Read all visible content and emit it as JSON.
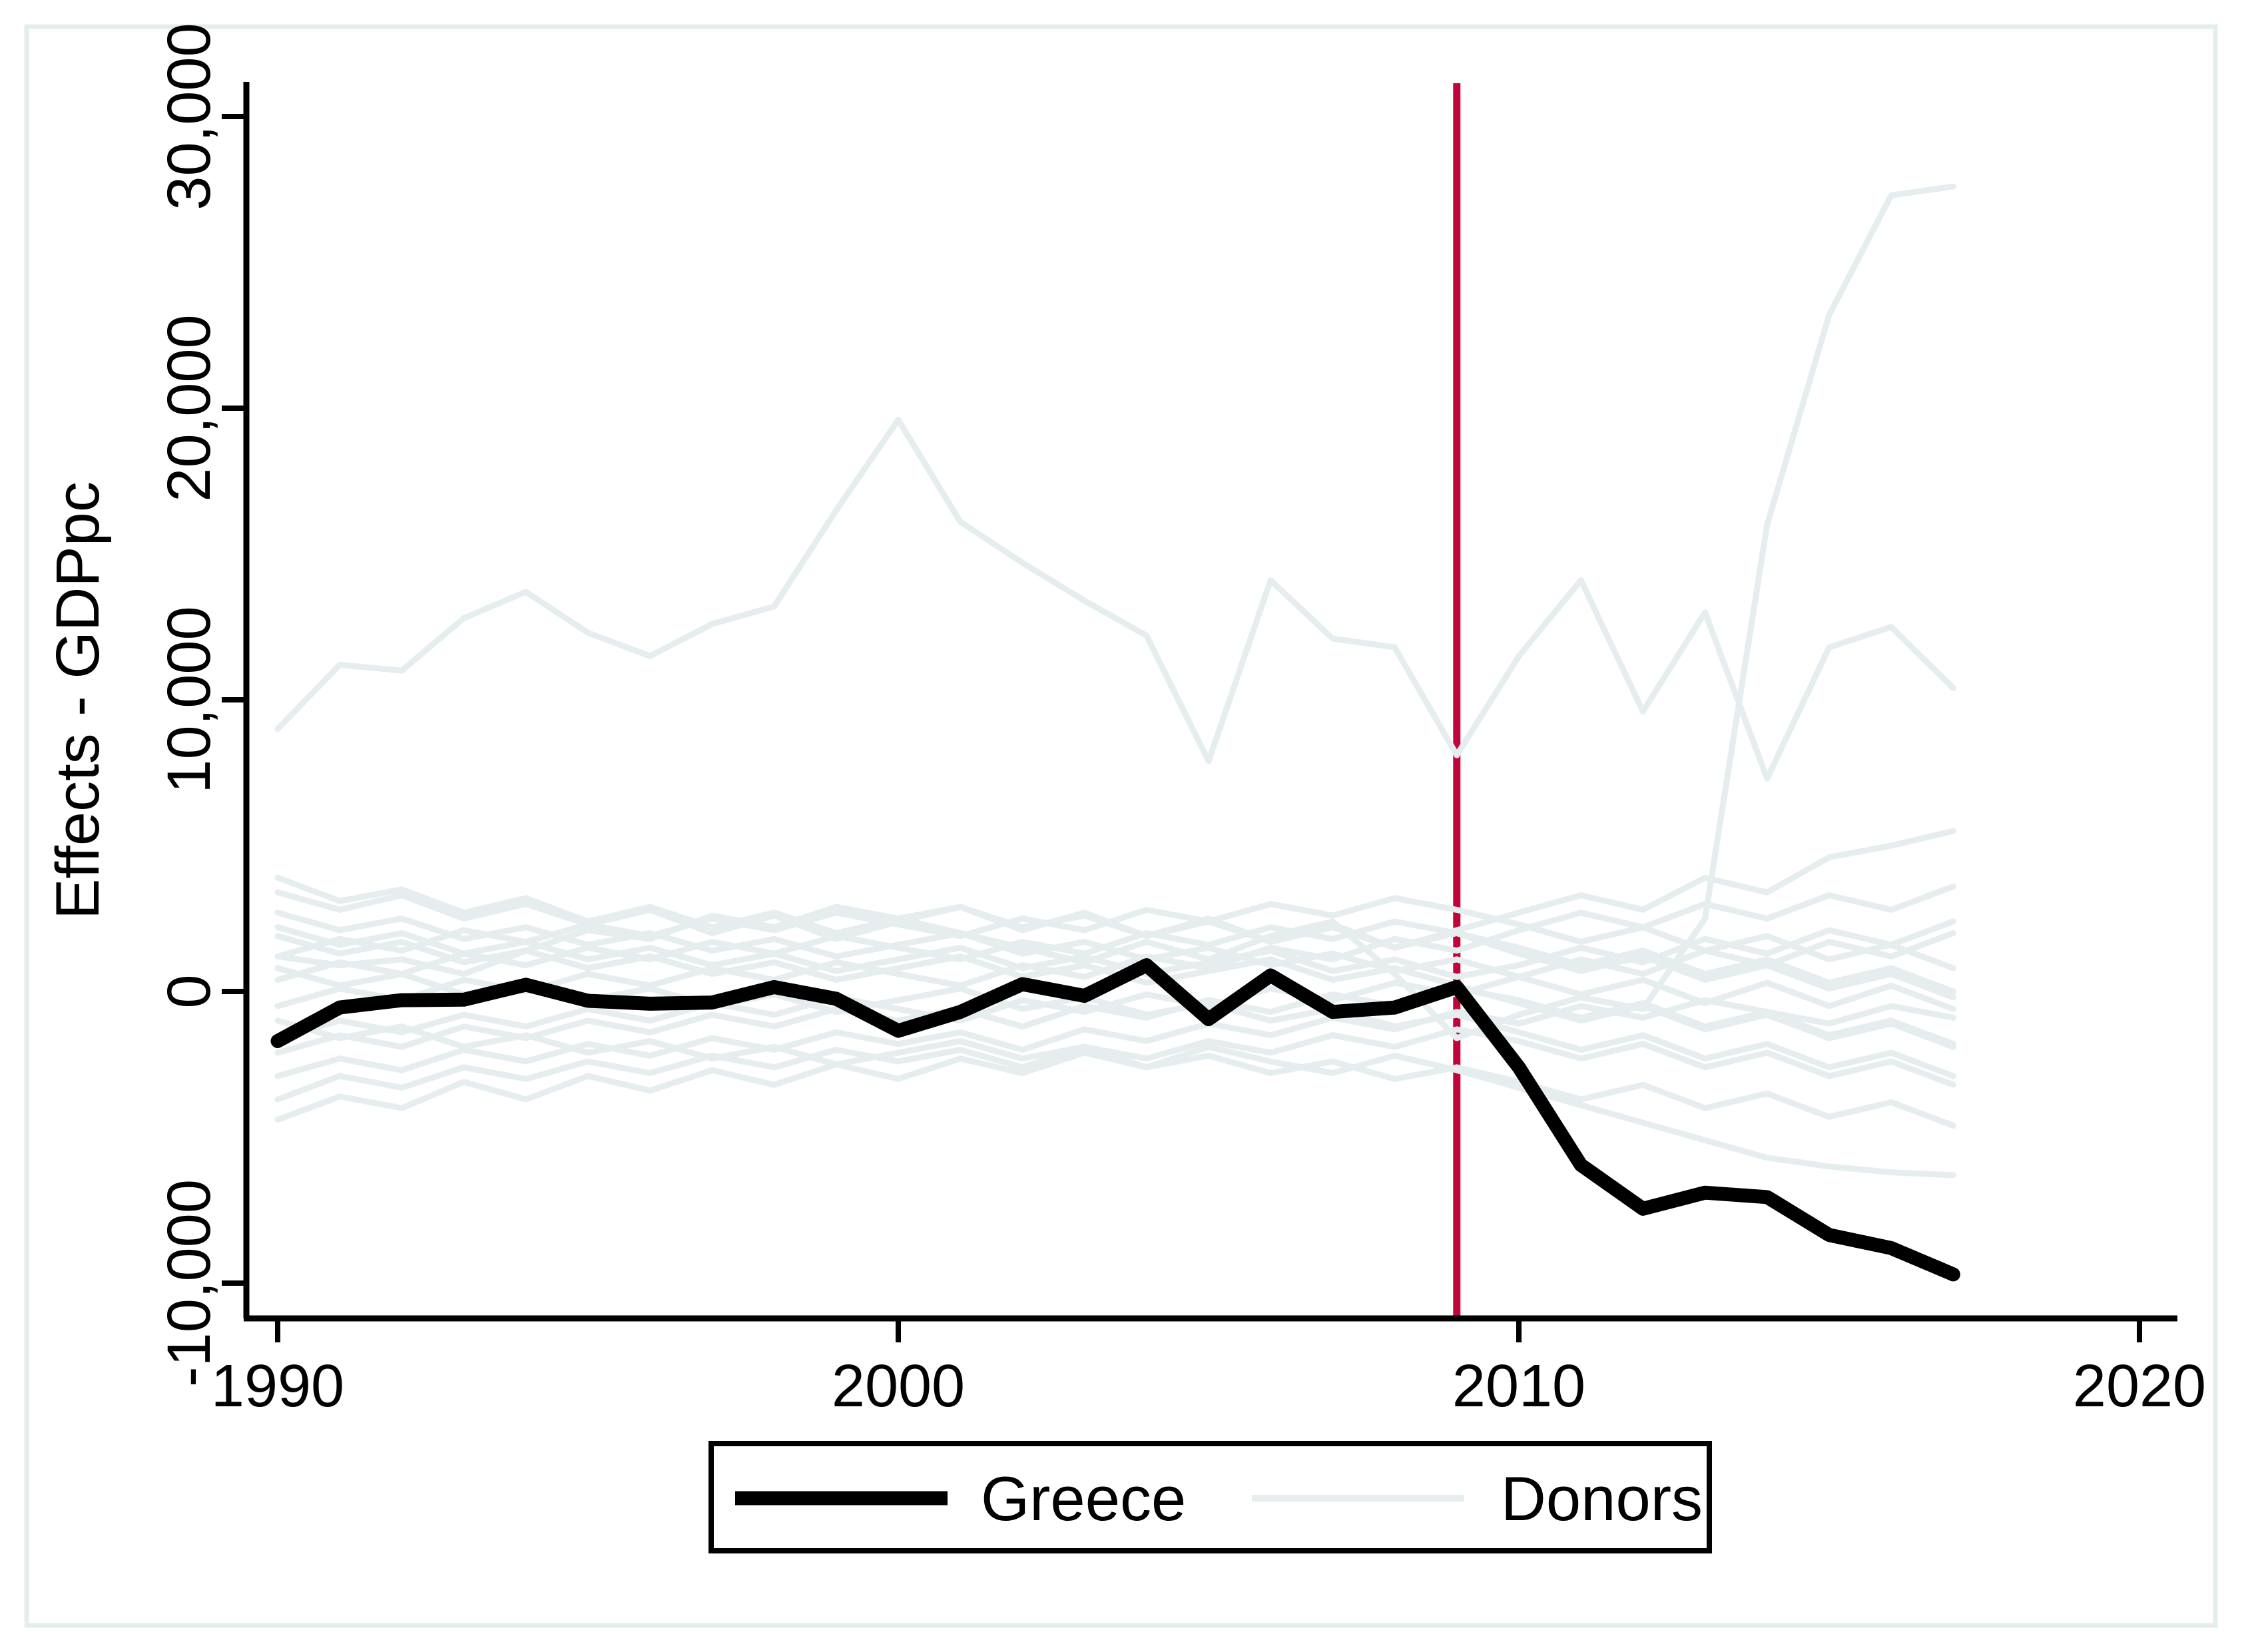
{
  "chart_data": {
    "type": "line",
    "title": "",
    "xlabel": "",
    "ylabel": "Effects - GDPpc",
    "x_start_year": 1990,
    "x_end_year": 2017,
    "xlim": [
      1990,
      2020
    ],
    "ylim": [
      -10000,
      30000
    ],
    "grid": "off",
    "legend_position": "bottom-center",
    "x_ticks": [
      1990,
      2000,
      2010,
      2020
    ],
    "x_tick_labels": [
      "1990",
      "2000",
      "2010",
      "2020"
    ],
    "y_ticks": [
      -10000,
      0,
      10000,
      20000,
      30000
    ],
    "y_tick_labels": [
      "-10,000",
      "0",
      "10,000",
      "20,000",
      "30,000"
    ],
    "vline": {
      "x": 2009,
      "color": "#c10538"
    },
    "series": [
      {
        "name": "Greece",
        "color": "#000000",
        "width": 21,
        "values": [
          -1700,
          -550,
          -300,
          -280,
          230,
          -320,
          -420,
          -380,
          150,
          -250,
          -1350,
          -700,
          250,
          -150,
          900,
          -950,
          550,
          -700,
          -550,
          150,
          -2600,
          -5950,
          -7450,
          -6900,
          -7050,
          -8350,
          -8800,
          -9700
        ]
      },
      {
        "name": "Donors",
        "color": "#e6edee",
        "width": 9,
        "values_list": [
          [
            9000,
            11200,
            11000,
            12800,
            13700,
            12300,
            11500,
            12600,
            13200,
            16500,
            19600,
            16100,
            14700,
            13400,
            12200,
            7900,
            14100,
            12100,
            11800,
            8100,
            11500,
            14100,
            9600,
            13000,
            7300,
            11800,
            12500,
            10400
          ],
          [
            1200,
            900,
            1100,
            600,
            1400,
            2100,
            1800,
            2600,
            2200,
            2900,
            2500,
            2000,
            1500,
            1000,
            1700,
            1100,
            1900,
            2400,
            600,
            -1600,
            -800,
            -200,
            -600,
            2500,
            16000,
            23200,
            27300,
            27600
          ],
          [
            3400,
            2800,
            3300,
            2500,
            3000,
            2300,
            2800,
            2000,
            2600,
            1800,
            2400,
            2900,
            2100,
            2700,
            1900,
            2500,
            1700,
            2300,
            1500,
            2100,
            2700,
            3300,
            2800,
            3900,
            3400,
            4600,
            5000,
            5500
          ],
          [
            -4400,
            -3600,
            -4000,
            -3100,
            -3700,
            -2900,
            -3400,
            -2700,
            -3200,
            -2500,
            -3000,
            -2300,
            -2800,
            -2100,
            -2600,
            -1900,
            -2400,
            -2800,
            -2200,
            -2700,
            -3300,
            -3900,
            -4500,
            -5100,
            -5700,
            -6000,
            -6200,
            -6300
          ],
          [
            1900,
            1300,
            1700,
            1000,
            1400,
            800,
            1200,
            600,
            1000,
            400,
            800,
            1200,
            500,
            900,
            300,
            700,
            1100,
            400,
            800,
            200,
            -400,
            -1000,
            -500,
            -1300,
            -800,
            -1600,
            -1100,
            -1900
          ],
          [
            -1600,
            -1000,
            -1400,
            -800,
            -1200,
            -600,
            -1000,
            -400,
            -800,
            -200,
            -600,
            -1000,
            -300,
            -700,
            -100,
            -500,
            100,
            -300,
            300,
            -100,
            500,
            1100,
            600,
            1400,
            900,
            1700,
            1200,
            2000
          ],
          [
            2700,
            2100,
            2500,
            1800,
            2200,
            1600,
            2000,
            1400,
            1800,
            1200,
            1600,
            2000,
            1300,
            1700,
            1100,
            1500,
            900,
            1300,
            700,
            1100,
            500,
            -100,
            400,
            -400,
            300,
            -500,
            200,
            -600
          ],
          [
            -2900,
            -2300,
            -2700,
            -2000,
            -2400,
            -1800,
            -2200,
            -1600,
            -2000,
            -1400,
            -1800,
            -1400,
            -2000,
            -1300,
            -1700,
            -1100,
            -1500,
            -900,
            -1300,
            -700,
            -1100,
            -500,
            -900,
            -300,
            -700,
            -1100,
            -500,
            -900
          ],
          [
            800,
            200,
            600,
            -100,
            300,
            -300,
            100,
            -500,
            -100,
            -700,
            -300,
            100,
            -600,
            -200,
            -800,
            -400,
            -1000,
            -600,
            -1200,
            -800,
            -1400,
            -2000,
            -1500,
            -2300,
            -1800,
            -2600,
            -2100,
            -2900
          ],
          [
            -500,
            100,
            -300,
            400,
            0,
            600,
            200,
            800,
            400,
            1000,
            600,
            200,
            900,
            500,
            1200,
            800,
            1500,
            1100,
            1800,
            1400,
            2100,
            2700,
            2200,
            3000,
            2500,
            3300,
            2800,
            3600
          ],
          [
            3900,
            3100,
            3500,
            2700,
            3200,
            2400,
            2900,
            2200,
            2700,
            2000,
            2500,
            2900,
            2200,
            2600,
            1900,
            2400,
            1700,
            2200,
            1500,
            2000,
            1300,
            700,
            1200,
            400,
            900,
            100,
            600,
            -200
          ],
          [
            -3700,
            -2900,
            -3300,
            -2600,
            -3000,
            -2400,
            -2800,
            -2200,
            -2600,
            -2000,
            -2400,
            -2000,
            -2600,
            -1900,
            -2300,
            -1700,
            -2100,
            -1500,
            -1900,
            -1300,
            -1700,
            -2300,
            -1800,
            -2600,
            -2100,
            -2900,
            -2400,
            -3200
          ],
          [
            1200,
            1800,
            1400,
            2100,
            1700,
            2300,
            1900,
            2500,
            2100,
            2700,
            2300,
            1900,
            2500,
            2100,
            2800,
            2400,
            3000,
            2600,
            3200,
            2800,
            2300,
            1700,
            2200,
            1400,
            1900,
            1100,
            1600,
            800
          ],
          [
            -2100,
            -1500,
            -1900,
            -1200,
            -1600,
            -1000,
            -1400,
            -800,
            -1200,
            -600,
            -1000,
            -600,
            -1200,
            -500,
            -900,
            -300,
            -700,
            -100,
            -500,
            100,
            -300,
            -900,
            -400,
            -1200,
            -700,
            -1500,
            -1000,
            -1800
          ],
          [
            400,
            1000,
            600,
            1300,
            900,
            1500,
            1100,
            1700,
            1300,
            1900,
            1500,
            1100,
            1700,
            1300,
            2000,
            1600,
            2200,
            1800,
            2400,
            2000,
            1500,
            900,
            1400,
            600,
            1100,
            300,
            800,
            0
          ],
          [
            -1000,
            -1600,
            -1200,
            -1900,
            -1500,
            -2100,
            -1700,
            -2300,
            -1900,
            -2500,
            -2100,
            -1700,
            -2300,
            -1900,
            -2600,
            -2200,
            -2800,
            -2400,
            -3000,
            -2600,
            -3100,
            -3700,
            -3200,
            -4000,
            -3500,
            -4300,
            -3800,
            -4600
          ],
          [
            2200,
            1600,
            2000,
            1300,
            1700,
            1100,
            1500,
            900,
            1300,
            700,
            1100,
            1500,
            800,
            1200,
            600,
            1000,
            1400,
            700,
            1100,
            500,
            900,
            1500,
            1000,
            1800,
            1300,
            2100,
            1600,
            2400
          ]
        ]
      }
    ]
  },
  "legend": {
    "items": [
      {
        "label": "Greece"
      },
      {
        "label": "Donors"
      }
    ]
  },
  "colors": {
    "axis": "#000000",
    "text": "#000000",
    "greece_line": "#000000",
    "donor_line": "#e6edee",
    "treatment_line": "#c10538",
    "figure_frame": "#e4edee",
    "background": "#ffffff",
    "legend_border": "#000000"
  }
}
